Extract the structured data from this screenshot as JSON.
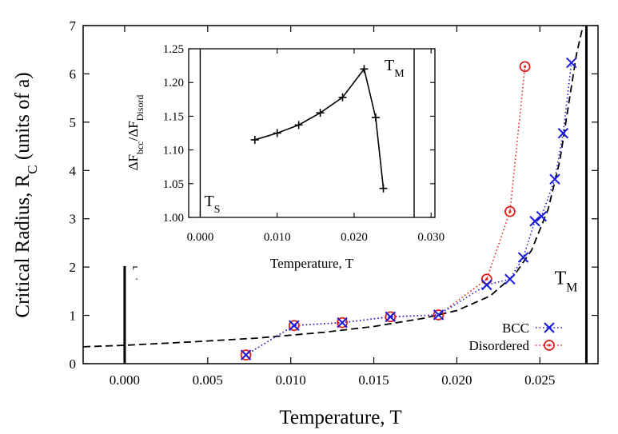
{
  "chart_data": [
    {
      "type": "line",
      "xlabel": "Temperature, T",
      "ylabel": "Critical Radius, R",
      "ylabel_sub": "C",
      "ylabel_suffix": " (units of a)",
      "xlim": [
        -0.0025,
        0.0285
      ],
      "ylim": [
        0,
        7
      ],
      "xticks": [
        "0.000",
        "0.005",
        "0.010",
        "0.015",
        "0.020",
        "0.025"
      ],
      "yticks": [
        "0",
        "1",
        "2",
        "3",
        "4",
        "5",
        "6",
        "7"
      ],
      "markers": {
        "TS": {
          "label": "T",
          "sub": "S",
          "x": 0.0
        },
        "TM": {
          "label": "T",
          "sub": "M",
          "x": 0.0278
        }
      },
      "legend_position": "bottom-right",
      "series": [
        {
          "name": "BCC",
          "style": "dotted",
          "marker": "x",
          "color": "#1a1adb",
          "points": [
            [
              0.0073,
              0.18
            ],
            [
              0.0102,
              0.79
            ],
            [
              0.0131,
              0.85
            ],
            [
              0.016,
              0.97
            ],
            [
              0.0189,
              1.01
            ],
            [
              0.0218,
              1.63
            ],
            [
              0.0232,
              1.75
            ],
            [
              0.024,
              2.2
            ],
            [
              0.0247,
              2.95
            ],
            [
              0.0251,
              3.05
            ],
            [
              0.0259,
              3.82
            ],
            [
              0.0264,
              4.77
            ],
            [
              0.0269,
              6.23
            ]
          ]
        },
        {
          "name": "Disordered",
          "style": "dotted",
          "marker": "circle-dot",
          "color": "#e0201c",
          "points": [
            [
              0.0073,
              0.18
            ],
            [
              0.0102,
              0.79
            ],
            [
              0.0131,
              0.85
            ],
            [
              0.016,
              0.97
            ],
            [
              0.0189,
              1.01
            ],
            [
              0.0218,
              1.75
            ],
            [
              0.0232,
              3.15
            ],
            [
              0.0241,
              6.15
            ]
          ]
        },
        {
          "name": "",
          "style": "dashed",
          "marker": "none",
          "color": "#000000",
          "points": [
            [
              -0.0025,
              0.35
            ],
            [
              0.0,
              0.38
            ],
            [
              0.004,
              0.45
            ],
            [
              0.008,
              0.53
            ],
            [
              0.012,
              0.65
            ],
            [
              0.015,
              0.77
            ],
            [
              0.018,
              0.94
            ],
            [
              0.02,
              1.1
            ],
            [
              0.022,
              1.4
            ],
            [
              0.0235,
              1.85
            ],
            [
              0.0245,
              2.35
            ],
            [
              0.0255,
              3.2
            ],
            [
              0.0262,
              4.2
            ],
            [
              0.0267,
              5.3
            ],
            [
              0.0272,
              6.4
            ],
            [
              0.0276,
              7.0
            ]
          ]
        }
      ]
    },
    {
      "type": "line",
      "xlabel": "Temperature, T",
      "ylabel": "ΔF",
      "ylabel_parts": [
        "ΔF",
        "bcc",
        "/ΔF",
        "Disord"
      ],
      "xlim": [
        -0.0015,
        0.0305
      ],
      "ylim": [
        1.0,
        1.25
      ],
      "xticks": [
        "0.000",
        "0.010",
        "0.020",
        "0.030"
      ],
      "yticks": [
        "1.00",
        "1.05",
        "1.10",
        "1.15",
        "1.20",
        "1.25"
      ],
      "markers": {
        "TS": {
          "label": "T",
          "sub": "S",
          "x": 0.0
        },
        "TM": {
          "label": "T",
          "sub": "M",
          "x": 0.0278
        }
      },
      "series": [
        {
          "name": "",
          "style": "solid",
          "marker": "plus",
          "color": "#000000",
          "points": [
            [
              0.0071,
              1.115
            ],
            [
              0.01,
              1.125
            ],
            [
              0.0128,
              1.137
            ],
            [
              0.0156,
              1.155
            ],
            [
              0.0185,
              1.178
            ],
            [
              0.0213,
              1.22
            ],
            [
              0.0228,
              1.148
            ],
            [
              0.0238,
              1.043
            ]
          ]
        }
      ]
    }
  ]
}
